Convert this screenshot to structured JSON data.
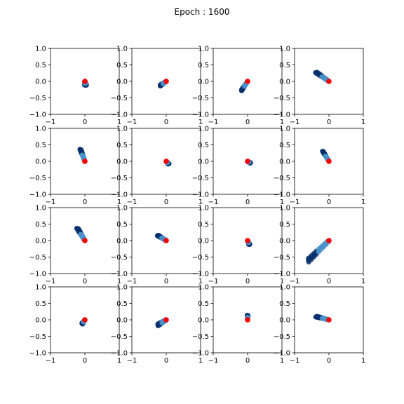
{
  "figure": {
    "title": "Epoch : 1600"
  },
  "chart_data": {
    "type": "scatter",
    "title": "Epoch : 1600",
    "layout": "4x4 grid",
    "xlim": [
      -1,
      1
    ],
    "ylim": [
      -1,
      1
    ],
    "xticks": [
      -1,
      0,
      1
    ],
    "yticks": [
      -1.0,
      -0.5,
      0.0,
      0.5,
      1.0
    ],
    "xtick_labels": [
      "−1",
      "0",
      "1"
    ],
    "ytick_labels": [
      "−1.0",
      "−0.5",
      "0.0",
      "0.5",
      "1.0"
    ],
    "grid": false,
    "colors": {
      "trajectory_dark": "#08306b",
      "trajectory_light": "#4a90c8",
      "target": "#ff0000"
    },
    "target": [
      0,
      0
    ],
    "panels": [
      {
        "start": [
          0.02,
          -0.12
        ],
        "end": [
          0.0,
          0.0
        ],
        "spread": 0.05
      },
      {
        "start": [
          -0.18,
          -0.13
        ],
        "end": [
          0.0,
          0.0
        ],
        "spread": 0.03
      },
      {
        "start": [
          -0.18,
          -0.28
        ],
        "end": [
          0.0,
          0.0
        ],
        "spread": 0.02
      },
      {
        "start": [
          -0.38,
          0.28
        ],
        "end": [
          0.0,
          0.0
        ],
        "spread": 0.04
      },
      {
        "start": [
          -0.13,
          0.37
        ],
        "end": [
          0.0,
          0.0
        ],
        "spread": 0.03
      },
      {
        "start": [
          0.07,
          -0.08
        ],
        "end": [
          0.0,
          0.0
        ],
        "spread": 0.03
      },
      {
        "start": [
          0.08,
          -0.05
        ],
        "end": [
          0.0,
          0.0
        ],
        "spread": 0.02
      },
      {
        "start": [
          -0.18,
          0.31
        ],
        "end": [
          0.0,
          0.0
        ],
        "spread": 0.02
      },
      {
        "start": [
          -0.22,
          0.38
        ],
        "end": [
          0.0,
          0.0
        ],
        "spread": 0.04
      },
      {
        "start": [
          -0.25,
          0.16
        ],
        "end": [
          0.0,
          0.0
        ],
        "spread": 0.03
      },
      {
        "start": [
          0.05,
          -0.12
        ],
        "end": [
          0.0,
          0.0
        ],
        "spread": 0.03
      },
      {
        "start": [
          -0.62,
          -0.62
        ],
        "end": [
          0.0,
          0.0
        ],
        "spread": 0.09
      },
      {
        "start": [
          -0.08,
          -0.12
        ],
        "end": [
          0.0,
          0.0
        ],
        "spread": 0.03
      },
      {
        "start": [
          -0.25,
          -0.16
        ],
        "end": [
          0.0,
          0.0
        ],
        "spread": 0.05
      },
      {
        "start": [
          0.0,
          0.14
        ],
        "end": [
          0.0,
          0.0
        ],
        "spread": 0.02
      },
      {
        "start": [
          -0.38,
          0.1
        ],
        "end": [
          0.0,
          0.0
        ],
        "spread": 0.03
      }
    ]
  }
}
